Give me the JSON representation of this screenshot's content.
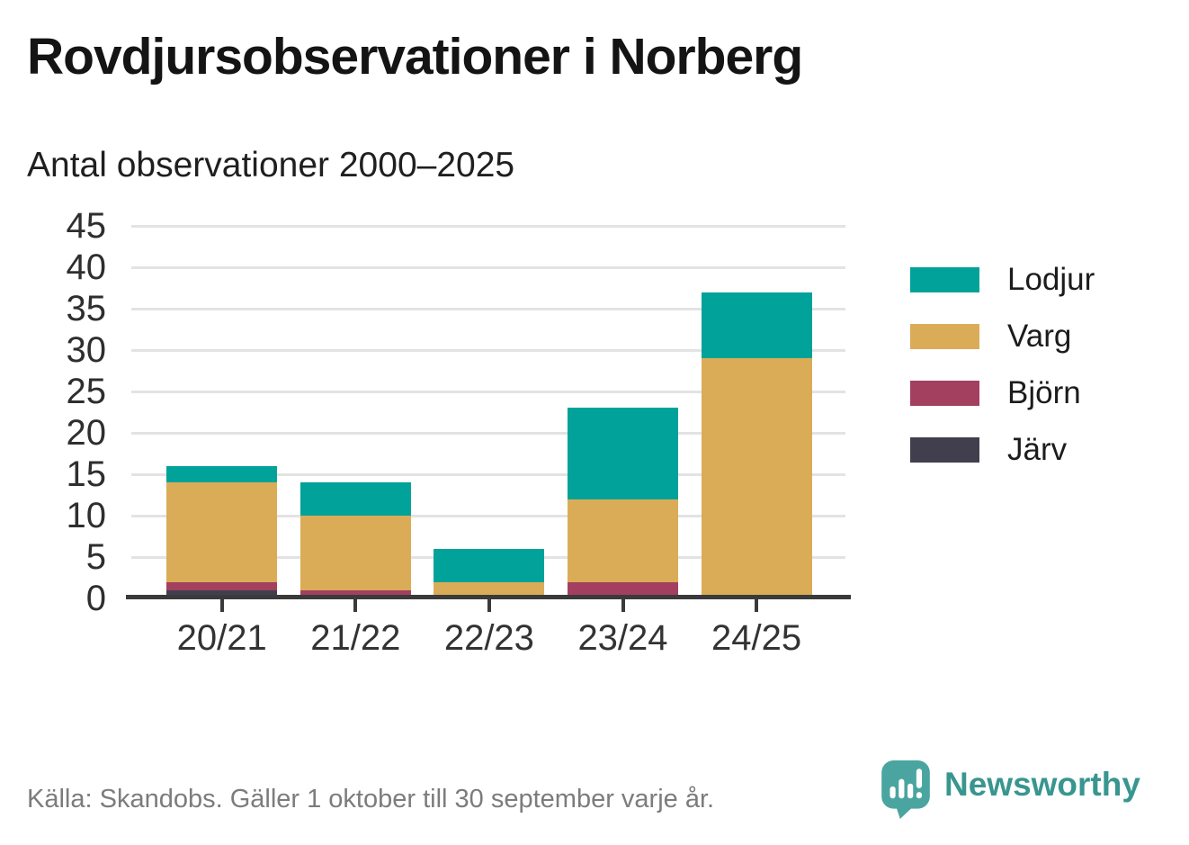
{
  "header": {
    "title": "Rovdjursobservationer i Norberg",
    "subtitle": "Antal observationer 2000–2025"
  },
  "chart_data": {
    "type": "bar",
    "stacked": true,
    "title": "Rovdjursobservationer i Norberg",
    "subtitle": "Antal observationer 2000–2025",
    "categories": [
      "20/21",
      "21/22",
      "22/23",
      "23/24",
      "24/25"
    ],
    "series": [
      {
        "name": "Järv",
        "color": "#413f4d",
        "values": [
          1,
          0,
          0,
          0,
          0
        ]
      },
      {
        "name": "Björn",
        "color": "#a33f5f",
        "values": [
          1,
          1,
          0,
          2,
          0
        ]
      },
      {
        "name": "Varg",
        "color": "#dbac57",
        "values": [
          12,
          9,
          2,
          10,
          29
        ]
      },
      {
        "name": "Lodjur",
        "color": "#00a29a",
        "values": [
          2,
          4,
          4,
          11,
          8
        ]
      }
    ],
    "stack_order_note": "series listed bottom to top; legend shows reverse order",
    "xlabel": "",
    "ylabel": "",
    "ylim": [
      0,
      45
    ],
    "yticks": [
      0,
      5,
      10,
      15,
      20,
      25,
      30,
      35,
      40,
      45
    ],
    "grid": true,
    "legend_position": "right"
  },
  "footer": {
    "source": "Källa: Skandobs. Gäller 1 oktober till 30 september varje år.",
    "brand": "Newsworthy"
  },
  "colors": {
    "background": "#ffffff",
    "title_text": "#141414",
    "subtitle_text": "#1f1f1f",
    "axis_line": "#3a3a3a",
    "gridline": "#e3e3e3",
    "tick_text": "#333333",
    "source_text": "#7c7c7c",
    "brand_teal": "#38968f",
    "pin_fill": "#4aa5a0"
  }
}
